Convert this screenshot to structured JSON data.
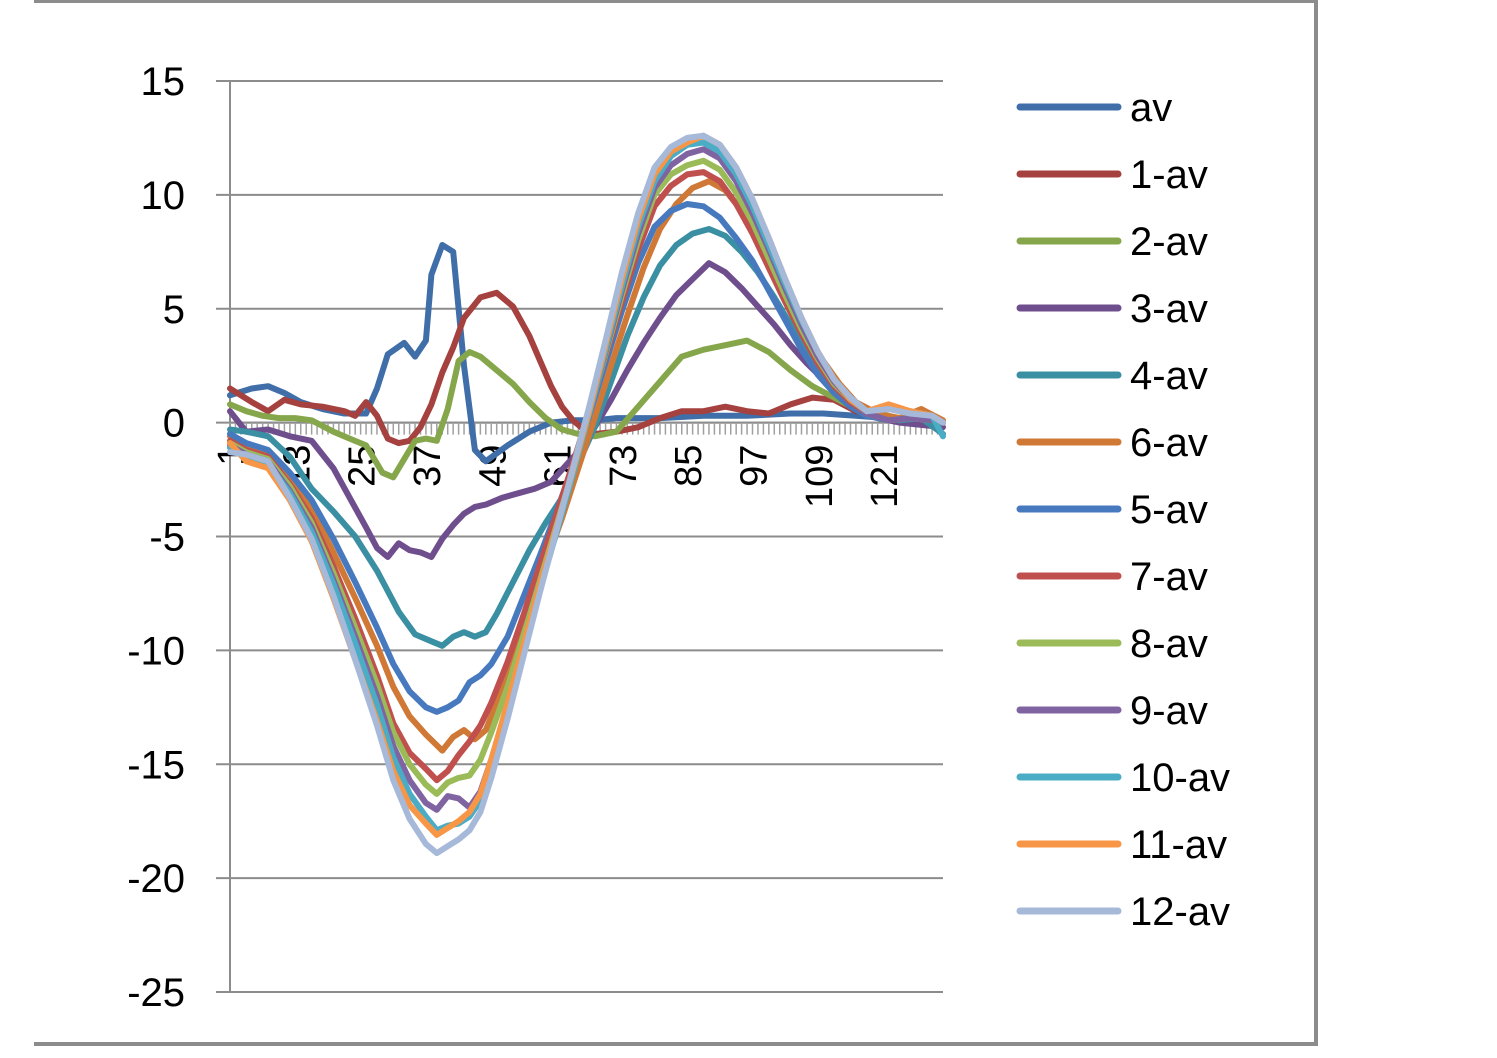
{
  "chart_data": {
    "type": "line",
    "title": "",
    "xlabel": "",
    "ylabel": "",
    "ylim": [
      -25,
      15
    ],
    "yticks": [
      15,
      10,
      5,
      0,
      -5,
      -10,
      -15,
      -20,
      -25
    ],
    "xlim": [
      1,
      132
    ],
    "xticks": [
      1,
      13,
      25,
      37,
      49,
      61,
      73,
      85,
      97,
      109,
      121
    ],
    "grid": "horizontal",
    "legend_position": "right",
    "series": [
      {
        "name": "av",
        "color": "#3f6ea8",
        "x": [
          1,
          5,
          8,
          11,
          14,
          18,
          22,
          26,
          28,
          30,
          33,
          35,
          37,
          38,
          40,
          42,
          44,
          46,
          48,
          52,
          56,
          60,
          64,
          68,
          72,
          80,
          88,
          96,
          104,
          110,
          116,
          122,
          128,
          132
        ],
        "y": [
          1.2,
          1.5,
          1.6,
          1.3,
          0.9,
          0.6,
          0.4,
          0.4,
          1.5,
          3.0,
          3.5,
          2.9,
          3.6,
          6.5,
          7.8,
          7.5,
          2.5,
          -1.2,
          -1.7,
          -1.0,
          -0.4,
          0.0,
          0.1,
          0.1,
          0.2,
          0.2,
          0.3,
          0.3,
          0.4,
          0.4,
          0.3,
          0.2,
          0.1,
          0.0
        ]
      },
      {
        "name": "1-av",
        "color": "#a5413e",
        "x": [
          1,
          5,
          8,
          11,
          14,
          18,
          22,
          24,
          26,
          28,
          30,
          32,
          34,
          36,
          38,
          40,
          42,
          44,
          47,
          50,
          53,
          56,
          58,
          60,
          62,
          64,
          66,
          68,
          72,
          76,
          80,
          84,
          88,
          92,
          96,
          100,
          104,
          108,
          112,
          116,
          120,
          124,
          128,
          132
        ],
        "y": [
          1.5,
          0.9,
          0.5,
          1.0,
          0.8,
          0.7,
          0.5,
          0.3,
          0.9,
          0.3,
          -0.7,
          -0.9,
          -0.8,
          -0.2,
          0.8,
          2.2,
          3.3,
          4.6,
          5.5,
          5.7,
          5.1,
          3.8,
          2.7,
          1.6,
          0.7,
          0.1,
          -0.3,
          -0.5,
          -0.4,
          -0.2,
          0.2,
          0.5,
          0.5,
          0.7,
          0.5,
          0.4,
          0.8,
          1.1,
          1.0,
          0.5,
          0.3,
          0.2,
          0.1,
          0.0
        ]
      },
      {
        "name": "2-av",
        "color": "#86a64b",
        "x": [
          1,
          4,
          7,
          10,
          13,
          16,
          20,
          23,
          26,
          29,
          31,
          33,
          35,
          37,
          39,
          41,
          43,
          45,
          47,
          50,
          53,
          56,
          59,
          62,
          65,
          68,
          72,
          76,
          80,
          84,
          88,
          92,
          96,
          100,
          104,
          108,
          112,
          116,
          120,
          124,
          128,
          132
        ],
        "y": [
          0.8,
          0.5,
          0.3,
          0.2,
          0.2,
          0.1,
          -0.4,
          -0.7,
          -1.0,
          -2.2,
          -2.4,
          -1.6,
          -0.8,
          -0.7,
          -0.8,
          0.6,
          2.7,
          3.1,
          2.9,
          2.3,
          1.7,
          0.9,
          0.2,
          -0.3,
          -0.5,
          -0.6,
          -0.4,
          0.7,
          1.8,
          2.9,
          3.2,
          3.4,
          3.6,
          3.1,
          2.3,
          1.6,
          1.1,
          0.6,
          0.3,
          0.2,
          0.1,
          0.0
        ]
      },
      {
        "name": "3-av",
        "color": "#6f4e8e",
        "x": [
          1,
          4,
          8,
          12,
          16,
          20,
          23,
          26,
          28,
          30,
          32,
          34,
          36,
          38,
          40,
          42,
          44,
          46,
          48,
          51,
          54,
          57,
          60,
          63,
          66,
          68,
          71,
          74,
          77,
          80,
          83,
          86,
          89,
          92,
          95,
          98,
          101,
          104,
          107,
          110,
          113,
          116,
          120,
          124,
          128,
          132
        ],
        "y": [
          0.5,
          -0.4,
          -0.3,
          -0.6,
          -0.8,
          -2.0,
          -3.3,
          -4.6,
          -5.5,
          -5.9,
          -5.3,
          -5.6,
          -5.7,
          -5.9,
          -5.1,
          -4.5,
          -4.0,
          -3.7,
          -3.6,
          -3.3,
          -3.1,
          -2.9,
          -2.6,
          -1.8,
          -1.0,
          -0.2,
          1.0,
          2.3,
          3.5,
          4.6,
          5.6,
          6.3,
          7.0,
          6.6,
          5.9,
          5.1,
          4.3,
          3.4,
          2.6,
          1.9,
          1.2,
          0.6,
          0.2,
          0.0,
          -0.1,
          -0.2
        ]
      },
      {
        "name": "4-av",
        "color": "#3a8fa3",
        "x": [
          1,
          4,
          8,
          12,
          16,
          20,
          24,
          28,
          32,
          35,
          38,
          40,
          42,
          44,
          46,
          48,
          50,
          53,
          56,
          59,
          62,
          65,
          68,
          71,
          74,
          77,
          80,
          83,
          86,
          89,
          92,
          95,
          98,
          101,
          104,
          107,
          110,
          113,
          116,
          120,
          124,
          128,
          132
        ],
        "y": [
          -0.3,
          -0.4,
          -0.6,
          -1.5,
          -2.9,
          -3.9,
          -5.0,
          -6.5,
          -8.3,
          -9.3,
          -9.6,
          -9.8,
          -9.4,
          -9.2,
          -9.4,
          -9.2,
          -8.4,
          -7.0,
          -5.6,
          -4.4,
          -3.3,
          -1.8,
          -0.2,
          1.8,
          3.8,
          5.5,
          6.9,
          7.8,
          8.3,
          8.5,
          8.2,
          7.5,
          6.6,
          5.5,
          4.3,
          3.2,
          2.2,
          1.4,
          0.8,
          0.3,
          0.1,
          0.2,
          -0.5
        ]
      },
      {
        "name": "6-av",
        "color": "#d07937",
        "x": [
          1,
          4,
          8,
          12,
          16,
          20,
          24,
          28,
          31,
          34,
          37,
          40,
          42,
          44,
          46,
          48,
          50,
          53,
          56,
          59,
          62,
          65,
          68,
          71,
          74,
          77,
          80,
          83,
          86,
          89,
          92,
          95,
          98,
          101,
          104,
          107,
          110,
          113,
          116,
          120,
          124,
          128,
          132
        ],
        "y": [
          -0.6,
          -1.1,
          -1.3,
          -2.4,
          -3.8,
          -5.7,
          -7.7,
          -9.8,
          -11.6,
          -12.9,
          -13.7,
          -14.4,
          -13.8,
          -13.5,
          -13.9,
          -13.5,
          -12.3,
          -10.3,
          -8.2,
          -6.2,
          -4.2,
          -2.0,
          0.2,
          2.5,
          4.7,
          6.8,
          8.5,
          9.6,
          10.3,
          10.6,
          10.2,
          9.3,
          8.1,
          6.7,
          5.3,
          3.9,
          2.7,
          1.7,
          0.9,
          0.4,
          0.2,
          0.6,
          0.1
        ]
      },
      {
        "name": "5-av",
        "color": "#4779bf",
        "x": [
          1,
          4,
          8,
          12,
          16,
          20,
          24,
          28,
          31,
          34,
          37,
          39,
          41,
          43,
          45,
          47,
          49,
          52,
          55,
          58,
          61,
          64,
          67,
          70,
          73,
          76,
          79,
          82,
          85,
          88,
          91,
          94,
          97,
          100,
          103,
          106,
          109,
          112,
          115,
          118,
          122,
          126,
          130,
          132
        ],
        "y": [
          -0.5,
          -0.9,
          -1.2,
          -2.2,
          -3.4,
          -5.1,
          -7.0,
          -9.0,
          -10.6,
          -11.8,
          -12.5,
          -12.7,
          -12.5,
          -12.2,
          -11.4,
          -11.1,
          -10.6,
          -9.4,
          -7.6,
          -5.8,
          -3.9,
          -1.9,
          0.3,
          2.6,
          4.9,
          7.0,
          8.6,
          9.3,
          9.6,
          9.5,
          9.0,
          8.1,
          7.1,
          5.8,
          4.5,
          3.2,
          2.1,
          1.3,
          0.7,
          0.3,
          0.1,
          0.2,
          0.1,
          0.0
        ]
      },
      {
        "name": "7-av",
        "color": "#c0504d",
        "x": [
          1,
          4,
          8,
          12,
          16,
          20,
          24,
          28,
          31,
          34,
          37,
          39,
          41,
          43,
          45,
          47,
          49,
          52,
          55,
          58,
          61,
          64,
          67,
          70,
          73,
          76,
          79,
          82,
          85,
          88,
          91,
          94,
          97,
          100,
          103,
          106,
          109,
          112,
          115,
          118,
          122,
          126,
          130,
          132
        ],
        "y": [
          -0.8,
          -1.2,
          -1.5,
          -2.7,
          -4.2,
          -6.3,
          -8.6,
          -11.1,
          -13.2,
          -14.5,
          -15.2,
          -15.7,
          -15.3,
          -14.6,
          -14.0,
          -13.3,
          -12.3,
          -10.5,
          -8.4,
          -6.2,
          -4.0,
          -1.8,
          0.5,
          2.9,
          5.3,
          7.6,
          9.5,
          10.4,
          10.9,
          11.0,
          10.6,
          9.6,
          8.3,
          6.8,
          5.3,
          3.9,
          2.6,
          1.6,
          0.9,
          0.4,
          0.1,
          0.2,
          0.1,
          0.0
        ]
      },
      {
        "name": "8-av",
        "color": "#9bbb59",
        "x": [
          1,
          4,
          8,
          12,
          16,
          20,
          24,
          28,
          31,
          34,
          37,
          39,
          41,
          43,
          45,
          47,
          49,
          52,
          55,
          58,
          61,
          64,
          67,
          70,
          73,
          76,
          79,
          82,
          85,
          88,
          91,
          94,
          97,
          100,
          103,
          106,
          109,
          112,
          115,
          118,
          122,
          126,
          130,
          132
        ],
        "y": [
          -0.9,
          -1.3,
          -1.6,
          -2.8,
          -4.4,
          -6.6,
          -9.0,
          -11.5,
          -13.6,
          -15.0,
          -15.9,
          -16.3,
          -15.8,
          -15.6,
          -15.5,
          -14.8,
          -13.6,
          -11.6,
          -9.3,
          -6.9,
          -4.5,
          -2.1,
          0.4,
          3.0,
          5.6,
          8.0,
          10.0,
          10.9,
          11.3,
          11.5,
          11.1,
          10.1,
          8.8,
          7.2,
          5.6,
          4.1,
          2.8,
          1.7,
          1.0,
          0.4,
          0.1,
          0.2,
          0.1,
          0.0
        ]
      },
      {
        "name": "9-av",
        "color": "#8064a2",
        "x": [
          1,
          4,
          8,
          12,
          16,
          20,
          24,
          28,
          31,
          34,
          37,
          39,
          41,
          43,
          45,
          47,
          49,
          52,
          55,
          58,
          61,
          64,
          67,
          70,
          73,
          76,
          79,
          82,
          85,
          88,
          91,
          94,
          97,
          100,
          103,
          106,
          109,
          112,
          115,
          118,
          122,
          126,
          130,
          132
        ],
        "y": [
          -1.0,
          -1.4,
          -1.7,
          -3.0,
          -4.6,
          -6.9,
          -9.4,
          -12.0,
          -14.2,
          -15.7,
          -16.7,
          -17.0,
          -16.4,
          -16.5,
          -16.9,
          -16.2,
          -14.8,
          -12.4,
          -9.8,
          -7.2,
          -4.7,
          -2.2,
          0.4,
          3.1,
          5.8,
          8.3,
          10.3,
          11.3,
          11.8,
          12.0,
          11.6,
          10.6,
          9.2,
          7.6,
          5.9,
          4.3,
          2.9,
          1.8,
          1.0,
          0.4,
          0.1,
          0.2,
          0.1,
          0.0
        ]
      },
      {
        "name": "10-av",
        "color": "#4bacc6",
        "x": [
          1,
          4,
          8,
          12,
          16,
          20,
          24,
          28,
          31,
          34,
          37,
          39,
          41,
          43,
          45,
          47,
          49,
          52,
          55,
          58,
          61,
          64,
          67,
          70,
          73,
          76,
          79,
          82,
          85,
          88,
          91,
          94,
          97,
          100,
          103,
          106,
          109,
          112,
          115,
          118,
          122,
          126,
          130,
          132
        ],
        "y": [
          -1.1,
          -1.5,
          -1.8,
          -3.1,
          -4.8,
          -7.1,
          -9.7,
          -12.4,
          -14.7,
          -16.3,
          -17.3,
          -17.9,
          -17.7,
          -17.6,
          -17.3,
          -16.6,
          -15.1,
          -12.6,
          -9.9,
          -7.3,
          -4.8,
          -2.3,
          0.4,
          3.2,
          6.0,
          8.6,
          10.6,
          11.7,
          12.2,
          12.3,
          11.9,
          10.9,
          9.5,
          7.8,
          6.1,
          4.5,
          3.1,
          1.9,
          1.0,
          0.5,
          0.6,
          0.5,
          0.3,
          -0.6
        ]
      },
      {
        "name": "11-av",
        "color": "#f79646",
        "x": [
          1,
          4,
          8,
          12,
          16,
          20,
          24,
          28,
          31,
          34,
          37,
          39,
          41,
          43,
          45,
          47,
          49,
          52,
          55,
          58,
          61,
          64,
          67,
          70,
          73,
          76,
          79,
          82,
          85,
          88,
          91,
          94,
          97,
          100,
          103,
          106,
          109,
          112,
          115,
          118,
          122,
          126,
          130,
          132
        ],
        "y": [
          -0.9,
          -1.7,
          -2.0,
          -3.4,
          -5.2,
          -7.7,
          -10.4,
          -13.1,
          -15.3,
          -16.8,
          -17.6,
          -18.1,
          -17.8,
          -17.5,
          -17.1,
          -16.3,
          -14.8,
          -12.3,
          -9.7,
          -7.1,
          -4.6,
          -2.1,
          0.5,
          3.4,
          6.3,
          8.9,
          10.9,
          11.9,
          12.3,
          12.6,
          12.2,
          11.2,
          9.8,
          8.1,
          6.3,
          4.6,
          3.1,
          1.9,
          1.0,
          0.5,
          0.8,
          0.5,
          0.3,
          0.0
        ]
      },
      {
        "name": "12-av",
        "color": "#a6b9d9",
        "x": [
          1,
          4,
          8,
          12,
          16,
          20,
          24,
          28,
          31,
          34,
          37,
          39,
          41,
          43,
          45,
          47,
          49,
          52,
          55,
          58,
          61,
          64,
          67,
          70,
          73,
          76,
          79,
          82,
          85,
          88,
          91,
          94,
          97,
          100,
          103,
          106,
          109,
          112,
          115,
          118,
          122,
          126,
          130,
          132
        ],
        "y": [
          -1.3,
          -1.4,
          -1.7,
          -3.3,
          -5.1,
          -7.6,
          -10.4,
          -13.3,
          -15.7,
          -17.4,
          -18.5,
          -18.9,
          -18.6,
          -18.3,
          -17.9,
          -17.1,
          -15.6,
          -13.0,
          -10.2,
          -7.4,
          -4.7,
          -2.0,
          0.7,
          3.6,
          6.6,
          9.2,
          11.2,
          12.1,
          12.5,
          12.6,
          12.2,
          11.2,
          9.8,
          8.1,
          6.3,
          4.6,
          3.1,
          1.9,
          1.1,
          0.5,
          0.6,
          0.4,
          0.3,
          0.0
        ]
      }
    ]
  }
}
